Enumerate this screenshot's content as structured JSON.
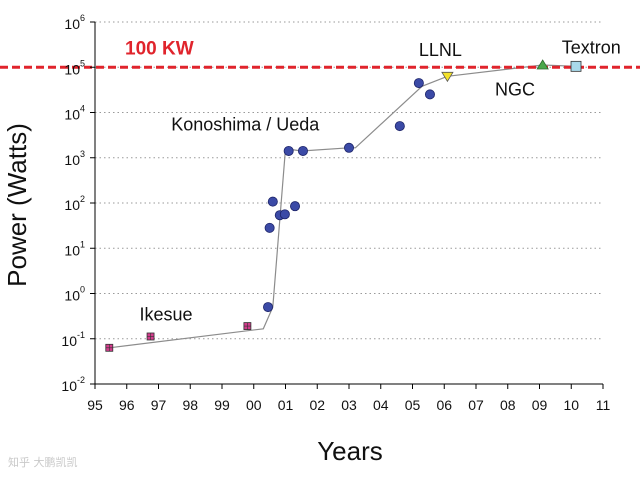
{
  "chart_data": {
    "type": "scatter",
    "title": "",
    "xlabel": "Years",
    "ylabel": "Power (Watts)",
    "y_scale": "log",
    "xlim": [
      95,
      111
    ],
    "ylim_exp": [
      -2,
      6
    ],
    "x_ticks": [
      {
        "v": 95,
        "label": "95"
      },
      {
        "v": 96,
        "label": "96"
      },
      {
        "v": 97,
        "label": "97"
      },
      {
        "v": 98,
        "label": "98"
      },
      {
        "v": 99,
        "label": "99"
      },
      {
        "v": 100,
        "label": "00"
      },
      {
        "v": 101,
        "label": "01"
      },
      {
        "v": 102,
        "label": "02"
      },
      {
        "v": 103,
        "label": "03"
      },
      {
        "v": 104,
        "label": "04"
      },
      {
        "v": 105,
        "label": "05"
      },
      {
        "v": 106,
        "label": "06"
      },
      {
        "v": 107,
        "label": "07"
      },
      {
        "v": 108,
        "label": "08"
      },
      {
        "v": 109,
        "label": "09"
      },
      {
        "v": 110,
        "label": "10"
      },
      {
        "v": 111,
        "label": "11"
      }
    ],
    "y_ticks": [
      {
        "exp": -2,
        "base": "10",
        "sup": "-2"
      },
      {
        "exp": -1,
        "base": "10",
        "sup": "-1"
      },
      {
        "exp": 0,
        "base": "10",
        "sup": "0"
      },
      {
        "exp": 1,
        "base": "10",
        "sup": "1"
      },
      {
        "exp": 2,
        "base": "10",
        "sup": "2"
      },
      {
        "exp": 3,
        "base": "10",
        "sup": "3"
      },
      {
        "exp": 4,
        "base": "10",
        "sup": "4"
      },
      {
        "exp": 5,
        "base": "10",
        "sup": "5"
      },
      {
        "exp": 6,
        "base": "10",
        "sup": "6"
      }
    ],
    "grid": "horizontal-dotted",
    "reference_line": {
      "value_exp": 5,
      "label": "100 KW",
      "color": "#e0242c"
    },
    "series": [
      {
        "name": "Ikesue",
        "marker": "square",
        "color": "#d23c8c",
        "points": [
          [
            95.45,
            -1.2
          ],
          [
            96.75,
            -0.95
          ],
          [
            99.8,
            -0.72
          ]
        ]
      },
      {
        "name": "Konoshima / Ueda",
        "marker": "circle",
        "color": "#3b4aa6",
        "points": [
          [
            100.45,
            -0.3
          ],
          [
            100.5,
            1.45
          ],
          [
            100.6,
            2.03
          ],
          [
            100.82,
            1.73
          ],
          [
            100.98,
            1.75
          ],
          [
            101.3,
            1.93
          ],
          [
            101.1,
            3.15
          ],
          [
            101.55,
            3.15
          ],
          [
            103.0,
            3.22
          ],
          [
            104.6,
            3.7
          ],
          [
            105.2,
            4.65
          ],
          [
            105.55,
            4.4
          ]
        ]
      },
      {
        "name": "LLNL",
        "marker": "triangle-down",
        "color": "#f3e12a",
        "points": [
          [
            106.1,
            4.8
          ]
        ]
      },
      {
        "name": "NGC",
        "marker": "triangle-up",
        "color": "#49a84a",
        "points": [
          [
            109.1,
            5.05
          ]
        ]
      },
      {
        "name": "Textron",
        "marker": "square",
        "color": "#a9d9ea",
        "points": [
          [
            110.15,
            5.02
          ]
        ]
      }
    ],
    "trend_line": [
      [
        95.45,
        -1.2
      ],
      [
        100.3,
        -0.78
      ],
      [
        100.6,
        -0.3
      ],
      [
        101.0,
        3.2
      ],
      [
        101.5,
        3.15
      ],
      [
        103.0,
        3.22
      ],
      [
        103.2,
        3.22
      ],
      [
        105.3,
        4.58
      ],
      [
        106.1,
        4.8
      ],
      [
        109.1,
        5.05
      ],
      [
        110.15,
        5.02
      ]
    ],
    "annotations": [
      {
        "text": "Ikesue",
        "x": 96.4,
        "y_exp": -0.6
      },
      {
        "text": "Konoshima / Ueda",
        "x": 97.4,
        "y_exp": 3.6
      },
      {
        "text": "LLNL",
        "x": 105.2,
        "y_exp": 5.25
      },
      {
        "text": "NGC",
        "x": 107.6,
        "y_exp": 4.38
      },
      {
        "text": "Textron",
        "x": 109.7,
        "y_exp": 5.3
      }
    ]
  },
  "watermark": "知乎 大鹏凯凯"
}
